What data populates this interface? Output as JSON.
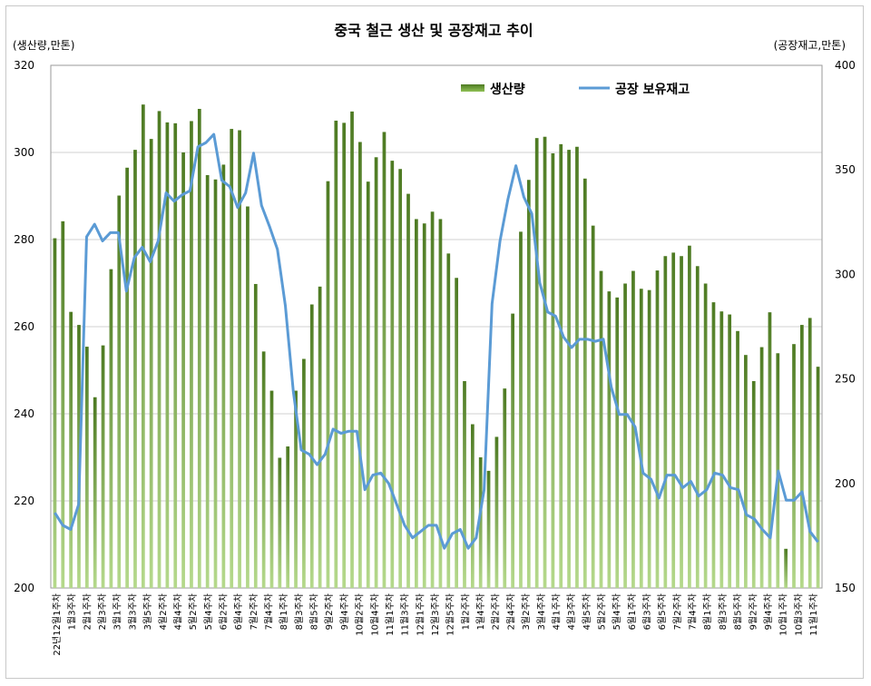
{
  "chart_data": {
    "type": "bar+line",
    "title": "중국 철근 생산 및 공장재고 추이",
    "ylabel_left": "(생산량,만톤)",
    "ylabel_right": "(공장재고,만톤)",
    "ylim_left": [
      200,
      320
    ],
    "yticks_left": [
      200,
      220,
      240,
      260,
      280,
      300,
      320
    ],
    "ylim_right": [
      150,
      400
    ],
    "yticks_right": [
      150,
      200,
      250,
      300,
      350,
      400
    ],
    "grid": true,
    "legend_position": "top-right",
    "legend": [
      "생산량",
      "공장 보유재고"
    ],
    "x_tick_labels": [
      "22년12월1주차",
      "1월3주차",
      "2월1주차",
      "2월3주차",
      "3월1주차",
      "3월3주차",
      "3월5주차",
      "4월2주차",
      "4월4주차",
      "5월2주차",
      "5월4주차",
      "6월2주차",
      "6월4주차",
      "7월2주차",
      "7월4주차",
      "8월1주차",
      "8월3주차",
      "8월5주차",
      "9월2주차",
      "9월4주차",
      "10월2주차",
      "10월4주차",
      "11월1주차",
      "11월3주차",
      "12월1주차",
      "12월3주차",
      "12월5주차",
      "1월2주차",
      "1월4주차",
      "2월2주차",
      "2월4주차",
      "3월2주차",
      "3월4주차",
      "4월1주차",
      "4월3주차",
      "4월5주차",
      "5월2주차",
      "5월4주차",
      "6월1주차",
      "6월3주차",
      "6월5주차",
      "7월2주차",
      "7월4주차",
      "8월1주차",
      "8월3주차",
      "8월5주차",
      "9월2주차",
      "9월4주차",
      "10월1주차",
      "10월3주차",
      "11월1주차"
    ],
    "series": [
      {
        "name": "생산량",
        "axis": "left",
        "color": "#5f8f2e",
        "values": [
          280.3,
          284.2,
          263.4,
          260.4,
          255.4,
          243.8,
          255.7,
          273.2,
          290.1,
          296.5,
          300.6,
          311.0,
          303.1,
          309.5,
          306.9,
          306.7,
          300.0,
          307.2,
          310.0,
          294.8,
          293.8,
          297.2,
          305.4,
          305.1,
          287.6,
          269.8,
          254.3,
          245.3,
          229.9,
          232.5,
          245.3,
          252.6,
          265.1,
          269.2,
          293.4,
          307.3,
          306.8,
          309.4,
          302.4,
          293.3,
          298.9,
          304.7,
          298.1,
          296.2,
          290.5,
          284.7,
          283.7,
          286.4,
          284.7,
          276.8,
          271.2,
          247.5,
          237.6,
          230.0,
          226.9,
          234.7,
          245.8,
          263.0,
          281.8,
          293.7,
          303.3,
          303.6,
          299.8,
          301.9,
          300.6,
          301.3,
          294.0,
          283.2,
          272.8,
          268.1,
          266.7,
          269.9,
          272.8,
          268.7,
          268.4,
          272.9,
          276.2,
          277.0,
          276.2,
          278.6,
          273.9,
          269.9,
          265.6,
          263.5,
          262.8,
          259.0,
          253.5,
          247.5,
          255.3,
          263.3,
          253.9,
          209.0,
          256.0,
          260.4,
          262.0,
          250.8
        ]
      },
      {
        "name": "공장 보유재고",
        "axis": "right",
        "color": "#5b9bd5",
        "values": [
          186,
          180,
          178,
          190,
          318,
          324,
          316,
          320,
          320,
          292,
          308,
          313,
          306,
          316,
          339,
          335,
          338,
          340,
          361,
          363,
          367,
          345,
          342,
          332,
          339,
          358,
          333,
          323,
          312,
          285,
          244,
          216,
          214,
          209,
          214,
          226,
          224,
          225,
          225,
          197,
          204,
          205,
          200,
          190,
          180,
          174,
          177,
          180,
          180,
          169,
          176,
          178,
          169,
          174,
          197,
          286,
          316,
          336,
          352,
          337,
          329,
          296,
          282,
          280,
          270,
          265,
          269,
          269,
          268,
          269,
          246,
          233,
          233,
          227,
          205,
          202,
          193,
          204,
          204,
          198,
          201,
          194,
          197,
          205,
          204,
          198,
          197,
          185,
          183,
          178,
          174,
          206,
          192,
          192,
          196,
          177,
          172
        ]
      }
    ]
  }
}
